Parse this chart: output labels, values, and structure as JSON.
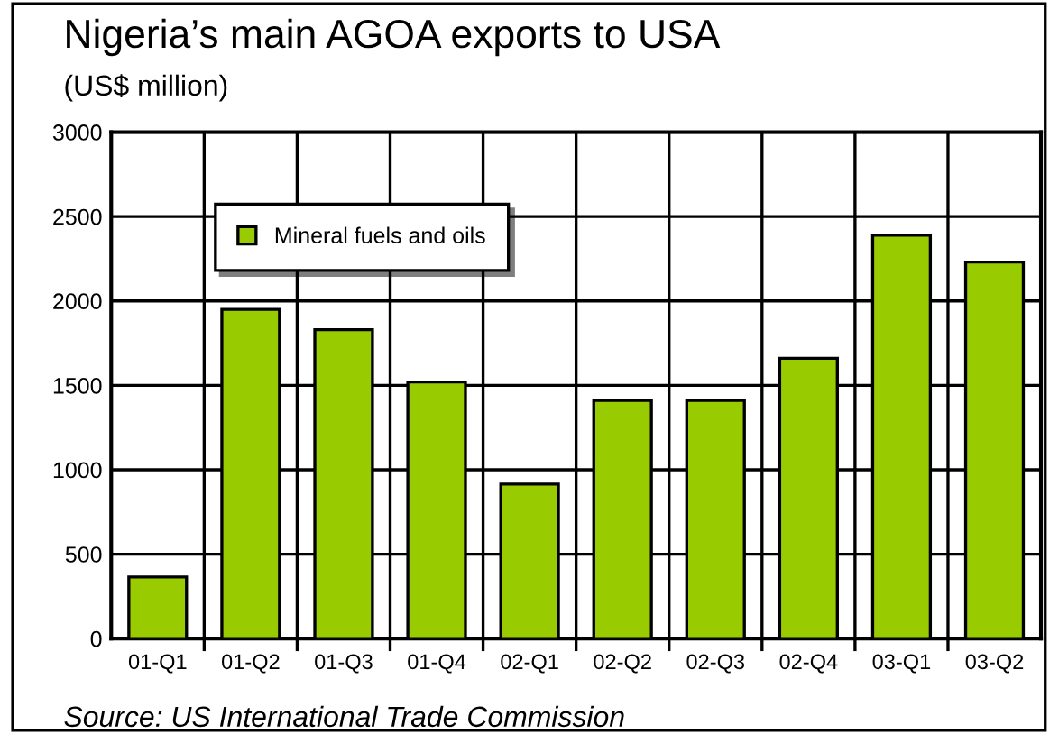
{
  "chart_data": {
    "type": "bar",
    "title": "Nigeria’s main AGOA exports to USA",
    "subtitle": "(US$ million)",
    "categories": [
      "01-Q1",
      "01-Q2",
      "01-Q3",
      "01-Q4",
      "02-Q1",
      "02-Q2",
      "02-Q3",
      "02-Q4",
      "03-Q1",
      "03-Q2"
    ],
    "series": [
      {
        "name": "Mineral fuels and oils",
        "color": "#99cc00",
        "values": [
          365,
          1950,
          1830,
          1520,
          915,
          1410,
          1410,
          1660,
          2390,
          2230
        ]
      }
    ],
    "ylim": [
      0,
      3000
    ],
    "yticks": [
      0,
      500,
      1000,
      1500,
      2000,
      2500,
      3000
    ],
    "grid": true,
    "legend": "top left",
    "annotations": [
      "Source: US International Trade Commission"
    ]
  }
}
